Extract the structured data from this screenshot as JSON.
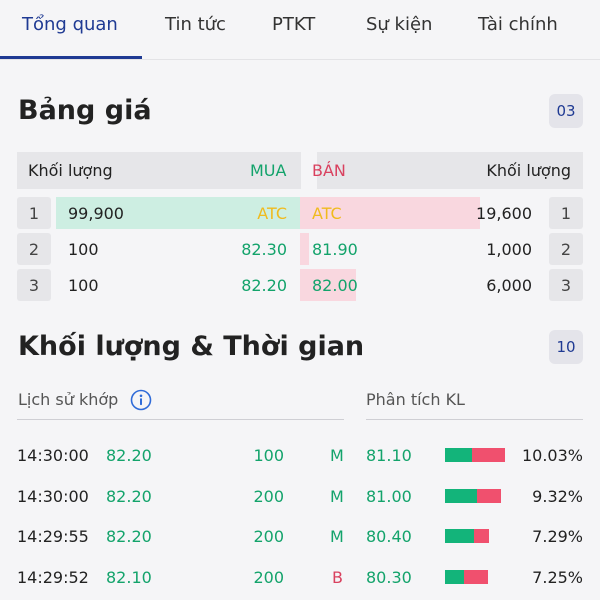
{
  "tabs": [
    "Tổng quan",
    "Tin tức",
    "PTKT",
    "Sự kiện",
    "Tài chính"
  ],
  "price_board": {
    "title": "Bảng giá",
    "badge": "03",
    "header": {
      "buy_volume": "Khối lượng",
      "buy": "MUA",
      "sell": "BÁN",
      "sell_volume": "Khối lượng"
    },
    "rows": [
      {
        "index": "1",
        "buy_volume": "99,900",
        "buy_price": "ATC",
        "sell_price": "ATC",
        "sell_volume": "19,600",
        "index_right": "1",
        "buy_bar": 1.0,
        "sell_bar": 1.0
      },
      {
        "index": "2",
        "buy_volume": "100",
        "buy_price": "82.30",
        "sell_price": "81.90",
        "sell_volume": "1,000",
        "index_right": "2",
        "buy_bar": 0.0,
        "sell_bar": 0.05
      },
      {
        "index": "3",
        "buy_volume": "100",
        "buy_price": "82.20",
        "sell_price": "82.00",
        "sell_volume": "6,000",
        "index_right": "3",
        "buy_bar": 0.0,
        "sell_bar": 0.31
      }
    ]
  },
  "volume_time": {
    "title": "Khối lượng & Thời gian",
    "badge": "10",
    "history_label": "Lịch sử khớp",
    "analysis_label": "Phân tích KL",
    "trades": [
      {
        "time": "14:30:00",
        "price": "82.20",
        "volume": "100",
        "side": "M"
      },
      {
        "time": "14:30:00",
        "price": "82.20",
        "volume": "200",
        "side": "M"
      },
      {
        "time": "14:29:55",
        "price": "82.20",
        "volume": "200",
        "side": "M"
      },
      {
        "time": "14:29:52",
        "price": "82.10",
        "volume": "200",
        "side": "B"
      }
    ],
    "analysis": [
      {
        "price": "81.10",
        "percent": "10.03%",
        "buy_share": 0.45,
        "sell_share": 0.55,
        "scale": 1.0
      },
      {
        "price": "81.00",
        "percent": "9.32%",
        "buy_share": 0.58,
        "sell_share": 0.42,
        "scale": 0.93
      },
      {
        "price": "80.40",
        "percent": "7.29%",
        "buy_share": 0.65,
        "sell_share": 0.35,
        "scale": 0.73
      },
      {
        "price": "80.30",
        "percent": "7.25%",
        "buy_share": 0.45,
        "sell_share": 0.55,
        "scale": 0.72
      }
    ]
  },
  "colors": {
    "accent": "#1f3a93",
    "buy": "#13a36b",
    "sell": "#d9415f",
    "atc": "#f0bb1e",
    "buy_bar": "#cdeee2",
    "sell_bar": "#f9d7df"
  }
}
